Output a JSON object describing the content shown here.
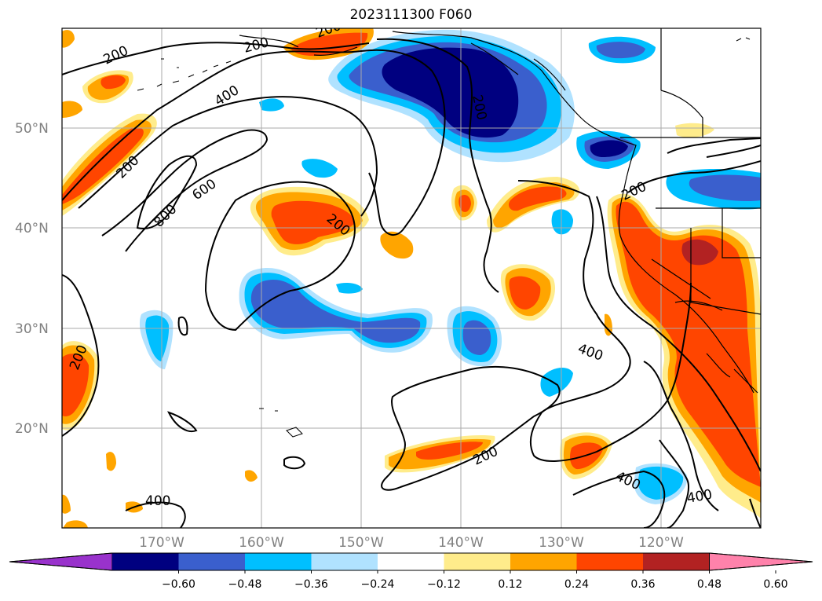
{
  "title": "2023111300 F060",
  "lat_labels": [
    "50°N",
    "40°N",
    "30°N",
    "20°N"
  ],
  "lon_labels": [
    "170°W",
    "160°W",
    "150°W",
    "140°W",
    "130°W",
    "120°W"
  ],
  "colorbar": {
    "colors": [
      "#9932cc",
      "#000080",
      "#3a5fcd",
      "#00bfff",
      "#b0e2ff",
      "#ffffff",
      "#ffec8b",
      "#ffa500",
      "#ff4500",
      "#b22222",
      "#ff82ab"
    ],
    "ticks": [
      "−0.60",
      "−0.48",
      "−0.36",
      "−0.24",
      "−0.12",
      "0.12",
      "0.24",
      "0.36",
      "0.48",
      "0.60"
    ]
  },
  "contour_labels": [
    "200",
    "200",
    "400",
    "200",
    "600",
    "800",
    "200",
    "200",
    "200",
    "200",
    "400",
    "200",
    "200",
    "400",
    "400"
  ]
}
